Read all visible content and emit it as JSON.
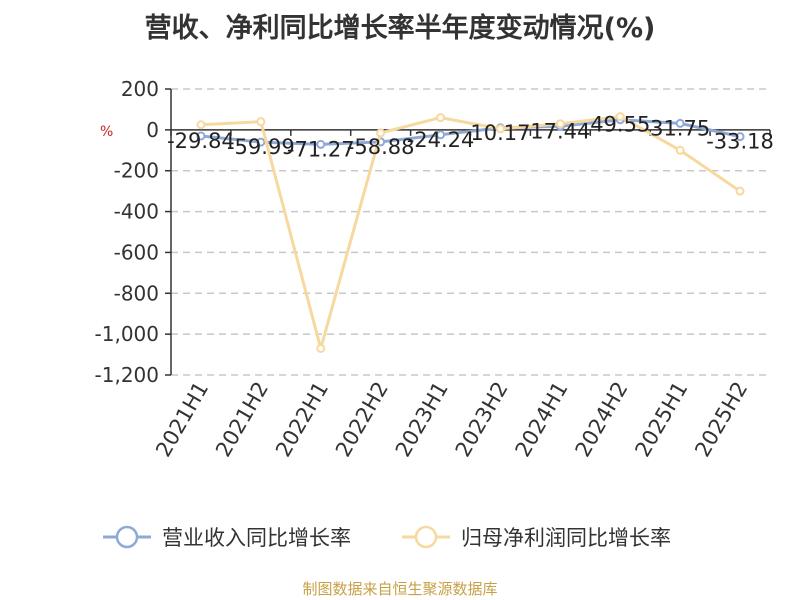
{
  "chart_data": {
    "type": "line",
    "title": "营收、净利同比增长率半年度变动情况(%)",
    "ylabel": "%",
    "categories": [
      "2021H1",
      "2021H2",
      "2022H1",
      "2022H2",
      "2023H1",
      "2023H2",
      "2024H1",
      "2024H2",
      "2025H1",
      "2025H2"
    ],
    "ylim": [
      -1200,
      200
    ],
    "yticks": [
      200,
      0,
      -200,
      -400,
      -600,
      -800,
      -1000,
      -1200
    ],
    "ytick_labels": [
      "200",
      "0",
      "-200",
      "-400",
      "-600",
      "-800",
      "-1,000",
      "-1,200"
    ],
    "grid": true,
    "legend_position": "bottom",
    "series": [
      {
        "name": "营业收入同比增长率",
        "color": "#8fa9d6",
        "values": [
          -29.84,
          -59.99,
          -71.27,
          -58.88,
          -24.24,
          10.17,
          17.44,
          49.55,
          31.75,
          -33.18
        ],
        "labels": [
          "-29.84",
          "-59.99",
          "-71.27",
          "-58.88",
          "-24.24",
          "10.17",
          "17.44",
          "49.55",
          "31.75",
          "-33.18"
        ]
      },
      {
        "name": "归母净利润同比增长率",
        "color": "#f7d9a0",
        "values": [
          25,
          40,
          -1070,
          -15,
          60,
          5,
          30,
          65,
          -100,
          -300
        ]
      }
    ]
  },
  "source": "制图数据来自恒生聚源数据库"
}
